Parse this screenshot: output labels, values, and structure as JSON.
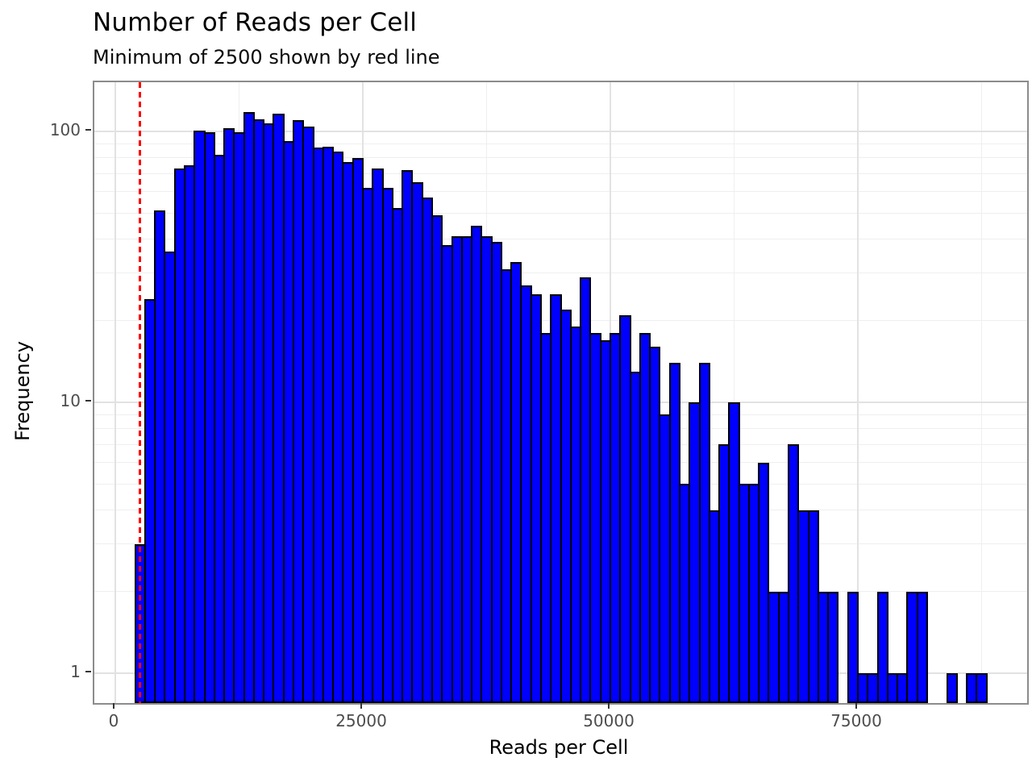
{
  "title": "Number of Reads per Cell",
  "subtitle": "Minimum of 2500 shown by red line",
  "chart_data": {
    "type": "bar",
    "subtype": "histogram",
    "title": "Number of Reads per Cell",
    "subtitle": "Minimum of 2500 shown by red line",
    "xlabel": "Reads per Cell",
    "ylabel": "Frequency",
    "y_scale": "log10",
    "grid": true,
    "legend": "none",
    "xlim": [
      -2100,
      92100
    ],
    "ylim": [
      0.78,
      152
    ],
    "x_tick_values": [
      0,
      25000,
      50000,
      75000
    ],
    "x_tick_labels": [
      "0",
      "25000",
      "50000",
      "75000"
    ],
    "x_minor_gridlines": [
      12500,
      37500,
      62500,
      87500
    ],
    "y_tick_values": [
      1,
      10,
      100
    ],
    "y_tick_labels": [
      "1",
      "10",
      "100"
    ],
    "y_minor_gridlines": [
      2,
      3,
      4,
      5,
      6,
      7,
      8,
      9,
      20,
      30,
      40,
      50,
      60,
      70,
      80,
      90
    ],
    "bin_start": 2000,
    "bin_width": 1000,
    "frequencies": [
      3,
      24,
      51,
      36,
      73,
      75,
      101,
      99,
      82,
      103,
      99,
      118,
      111,
      107,
      116,
      92,
      110,
      104,
      87,
      88,
      84,
      77,
      80,
      62,
      73,
      62,
      52,
      72,
      65,
      57,
      49,
      38,
      41,
      41,
      45,
      41,
      39,
      31,
      33,
      27,
      25,
      18,
      25,
      22,
      19,
      29,
      18,
      17,
      18,
      21,
      13,
      18,
      16,
      9,
      14,
      5,
      10,
      14,
      4,
      7,
      10,
      5,
      5,
      6,
      2,
      2,
      7,
      4,
      4,
      2,
      2,
      0,
      2,
      1,
      1,
      2,
      1,
      1,
      2,
      2,
      0,
      0,
      1,
      0,
      1,
      1
    ],
    "bar_fill_color": "#0000ff",
    "bar_border_color": "#000000",
    "threshold_line": {
      "x": 2500,
      "color": "#ff0000",
      "style": "dashed",
      "meaning": "Minimum of 2500"
    }
  }
}
